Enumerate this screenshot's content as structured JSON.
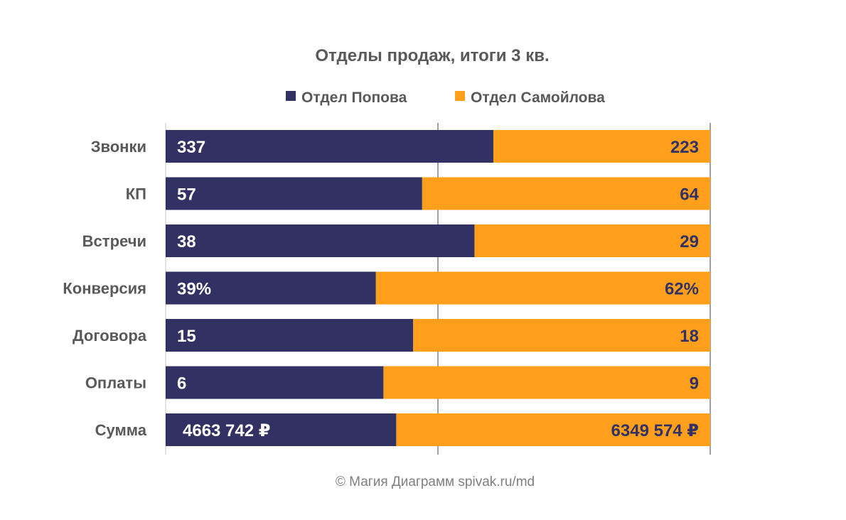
{
  "chart_data": {
    "type": "bar",
    "orientation": "horizontal",
    "stacking": "percent",
    "title": "Отделы продаж, итоги 3 кв.",
    "legend_position": "top",
    "grid": true,
    "xlim": [
      0,
      100
    ],
    "categories": [
      "Звонки",
      "КП",
      "Встречи",
      "Конверсия",
      "Договора",
      "Оплаты",
      "Сумма"
    ],
    "series": [
      {
        "name": "Отдел Попова",
        "color": "#313263",
        "values": [
          337,
          57,
          38,
          39,
          15,
          6,
          4663742
        ],
        "labels": [
          "337",
          "57",
          "38",
          "39%",
          "15",
          "6",
          "4663 742 ₽"
        ]
      },
      {
        "name": "Отдел Самойлова",
        "color": "#FF9F1C",
        "values": [
          223,
          64,
          29,
          62,
          18,
          9,
          6349574
        ],
        "labels": [
          "223",
          "64",
          "29",
          "62%",
          "18",
          "9",
          "6349 574 ₽"
        ]
      }
    ]
  },
  "footer": "© Магия Диаграмм spivak.ru/md"
}
